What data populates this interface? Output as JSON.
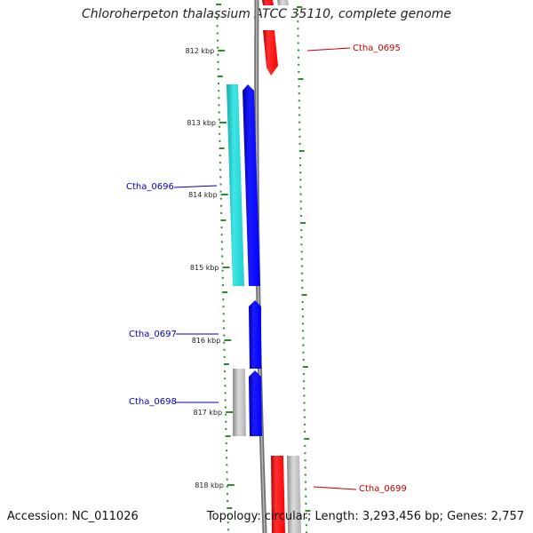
{
  "title": "Chloroherpeton thalassium ATCC 35110, complete genome",
  "footer": {
    "accession": "Accession: NC_011026",
    "summary": "Topology: circular; Length: 3,293,456 bp; Genes: 2,757"
  },
  "ruler": {
    "ticks": [
      "812 kbp",
      "813 kbp",
      "814 kbp",
      "815 kbp",
      "816 kbp",
      "817 kbp",
      "818 kbp"
    ]
  },
  "colors": {
    "backbone": "#808080",
    "tick_green": "#2e8b2e",
    "forward_red": "#ff0000",
    "reverse_blue": "#0000ff",
    "cyan": "#22d3d3",
    "gray_gene": "#b8b8b8",
    "label_red": "#cc0000",
    "label_blue": "#0000bb"
  },
  "genes": [
    {
      "id": "Ctha_0695",
      "label": "Ctha_0695",
      "color": "red",
      "strand": "reverse"
    },
    {
      "id": "Ctha_0696",
      "label": "Ctha_0696",
      "color": "blue",
      "strand": "forward"
    },
    {
      "id": "Ctha_0697",
      "label": "Ctha_0697",
      "color": "blue",
      "strand": "forward"
    },
    {
      "id": "Ctha_0698",
      "label": "Ctha_0698",
      "color": "blue",
      "strand": "forward"
    },
    {
      "id": "Ctha_0699",
      "label": "Ctha_0699",
      "color": "red",
      "strand": "reverse"
    }
  ]
}
